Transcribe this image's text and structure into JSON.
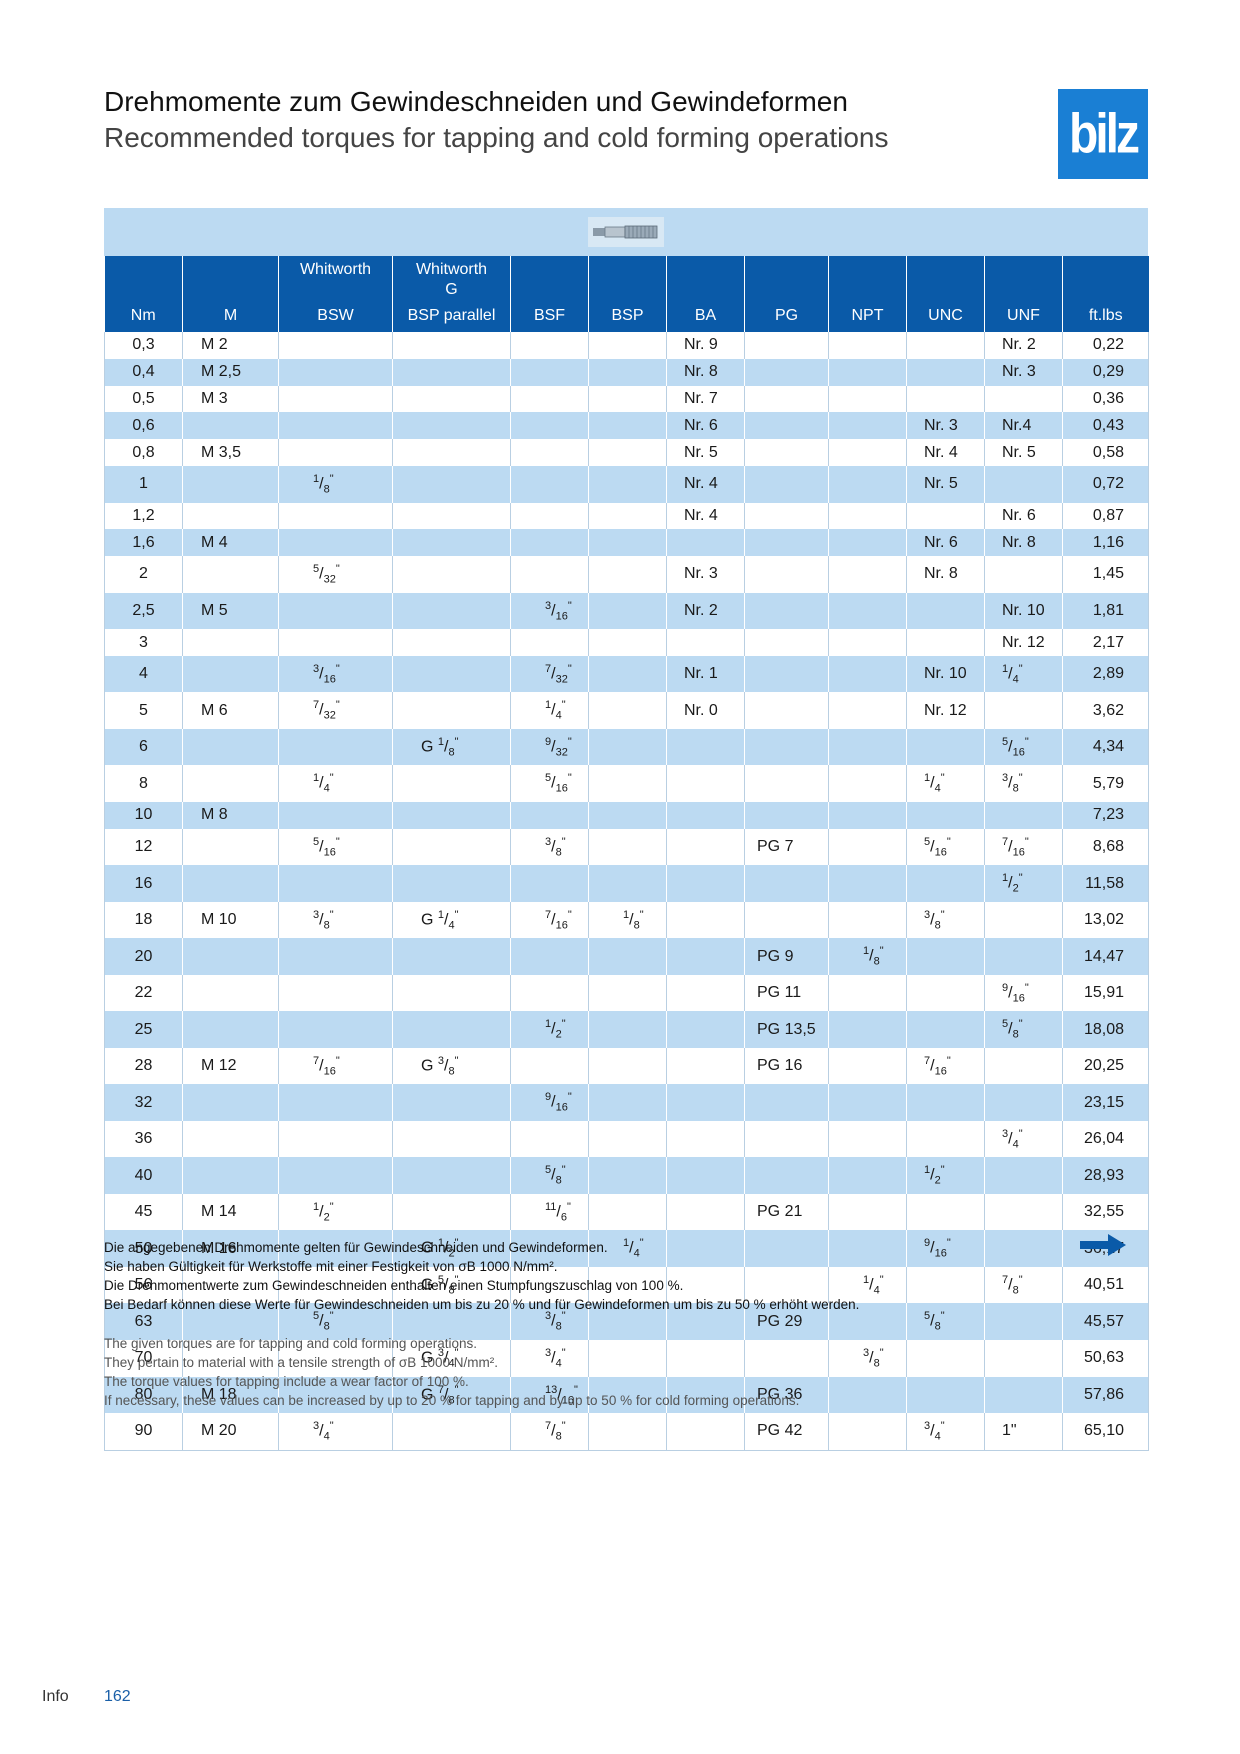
{
  "header": {
    "title_de": "Drehmomente zum Gewindeschneiden und Gewindeformen",
    "title_en": "Recommended torques for tapping and cold forming operations",
    "logo_text": "bilz",
    "logo_color": "#1a7fd4"
  },
  "table": {
    "columns": [
      {
        "top": "",
        "bottom": "Nm"
      },
      {
        "top": "",
        "bottom": "M"
      },
      {
        "top": "Whitworth",
        "bottom": "BSW"
      },
      {
        "top": "Whitworth\nG",
        "bottom": "BSP parallel"
      },
      {
        "top": "",
        "bottom": "BSF"
      },
      {
        "top": "",
        "bottom": "BSP"
      },
      {
        "top": "",
        "bottom": "BA"
      },
      {
        "top": "",
        "bottom": "PG"
      },
      {
        "top": "",
        "bottom": "NPT"
      },
      {
        "top": "",
        "bottom": "UNC"
      },
      {
        "top": "",
        "bottom": "UNF"
      },
      {
        "top": "",
        "bottom": "ft.lbs"
      }
    ],
    "rows": [
      [
        "0,3",
        "M 2",
        "",
        "",
        "",
        "",
        "Nr. 9",
        "",
        "",
        "",
        "Nr. 2",
        "0,22"
      ],
      [
        "0,4",
        "M 2,5",
        "",
        "",
        "",
        "",
        "Nr. 8",
        "",
        "",
        "",
        "Nr. 3",
        "0,29"
      ],
      [
        "0,5",
        "M 3",
        "",
        "",
        "",
        "",
        "Nr. 7",
        "",
        "",
        "",
        "",
        "0,36"
      ],
      [
        "0,6",
        "",
        "",
        "",
        "",
        "",
        "Nr. 6",
        "",
        "",
        "Nr. 3",
        "Nr.4",
        "0,43"
      ],
      [
        "0,8",
        "M 3,5",
        "",
        "",
        "",
        "",
        "Nr. 5",
        "",
        "",
        "Nr. 4",
        "Nr. 5",
        "0,58"
      ],
      [
        "1",
        "",
        "1/8\"",
        "",
        "",
        "",
        "Nr. 4",
        "",
        "",
        "Nr. 5",
        "",
        "0,72"
      ],
      [
        "1,2",
        "",
        "",
        "",
        "",
        "",
        "Nr. 4",
        "",
        "",
        "",
        "Nr. 6",
        "0,87"
      ],
      [
        "1,6",
        "M 4",
        "",
        "",
        "",
        "",
        "",
        "",
        "",
        "Nr. 6",
        "Nr. 8",
        "1,16"
      ],
      [
        "2",
        "",
        "5/32\"",
        "",
        "",
        "",
        "Nr. 3",
        "",
        "",
        "Nr. 8",
        "",
        "1,45"
      ],
      [
        "2,5",
        "M 5",
        "",
        "",
        "3/16\"",
        "",
        "Nr. 2",
        "",
        "",
        "",
        "Nr. 10",
        "1,81"
      ],
      [
        "3",
        "",
        "",
        "",
        "",
        "",
        "",
        "",
        "",
        "",
        "Nr. 12",
        "2,17"
      ],
      [
        "4",
        "",
        "3/16\"",
        "",
        "7/32\"",
        "",
        "Nr. 1",
        "",
        "",
        "Nr. 10",
        "1/4\"",
        "2,89"
      ],
      [
        "5",
        "M 6",
        "7/32\"",
        "",
        "1/4\"",
        "",
        "Nr. 0",
        "",
        "",
        "Nr. 12",
        "",
        "3,62"
      ],
      [
        "6",
        "",
        "",
        "G 1/8\"",
        "9/32\"",
        "",
        "",
        "",
        "",
        "",
        "5/16\"",
        "4,34"
      ],
      [
        "8",
        "",
        "1/4\"",
        "",
        "5/16\"",
        "",
        "",
        "",
        "",
        "1/4\"",
        "3/8\"",
        "5,79"
      ],
      [
        "10",
        "M 8",
        "",
        "",
        "",
        "",
        "",
        "",
        "",
        "",
        "",
        "7,23"
      ],
      [
        "12",
        "",
        "5/16\"",
        "",
        "3/8\"",
        "",
        "",
        "PG 7",
        "",
        "5/16\"",
        "7/16\"",
        "8,68"
      ],
      [
        "16",
        "",
        "",
        "",
        "",
        "",
        "",
        "",
        "",
        "",
        "1/2\"",
        "11,58"
      ],
      [
        "18",
        "M 10",
        "3/8\"",
        "G 1/4\"",
        "7/16\"",
        "1/8\"",
        "",
        "",
        "",
        "3/8\"",
        "",
        "13,02"
      ],
      [
        "20",
        "",
        "",
        "",
        "",
        "",
        "",
        "PG 9",
        "1/8\"",
        "",
        "",
        "14,47"
      ],
      [
        "22",
        "",
        "",
        "",
        "",
        "",
        "",
        "PG 11",
        "",
        "",
        "9/16\"",
        "15,91"
      ],
      [
        "25",
        "",
        "",
        "",
        "1/2\"",
        "",
        "",
        "PG 13,5",
        "",
        "",
        "5/8\"",
        "18,08"
      ],
      [
        "28",
        "M 12",
        "7/16\"",
        "G 3/8\"",
        "",
        "",
        "",
        "PG 16",
        "",
        "7/16\"",
        "",
        "20,25"
      ],
      [
        "32",
        "",
        "",
        "",
        "9/16\"",
        "",
        "",
        "",
        "",
        "",
        "",
        "23,15"
      ],
      [
        "36",
        "",
        "",
        "",
        "",
        "",
        "",
        "",
        "",
        "",
        "3/4\"",
        "26,04"
      ],
      [
        "40",
        "",
        "",
        "",
        "5/8\"",
        "",
        "",
        "",
        "",
        "1/2\"",
        "",
        "28,93"
      ],
      [
        "45",
        "M 14",
        "1/2\"",
        "",
        "11/6\"",
        "",
        "",
        "PG 21",
        "",
        "",
        "",
        "32,55"
      ],
      [
        "50",
        "M 16",
        "",
        "G 1/2\"",
        "",
        "1/4\"",
        "",
        "",
        "",
        "9/16\"",
        "",
        "36,17"
      ],
      [
        "56",
        "",
        "",
        "G 5/8\"",
        "",
        "",
        "",
        "",
        "1/4\"",
        "",
        "7/8\"",
        "40,51"
      ],
      [
        "63",
        "",
        "5/8\"",
        "",
        "3/8\"",
        "",
        "",
        "PG 29",
        "",
        "5/8\"",
        "",
        "45,57"
      ],
      [
        "70",
        "",
        "",
        "G 3/4\"",
        "3/4\"",
        "",
        "",
        "",
        "3/8\"",
        "",
        "",
        "50,63"
      ],
      [
        "80",
        "M 18",
        "",
        "G 7/8\"",
        "13/16\"",
        "",
        "",
        "PG 36",
        "",
        "",
        "",
        "57,86"
      ],
      [
        "90",
        "M 20",
        "3/4\"",
        "",
        "7/8\"",
        "",
        "",
        "PG 42",
        "",
        "3/4\"",
        "1\"",
        "65,10"
      ]
    ]
  },
  "notes_de": [
    "Die angegebenen Drehmomente gelten für Gewindeschneiden und Gewindeformen.",
    "Sie haben Gültigkeit für Werkstoffe mit einer Festigkeit von σB 1000 N/mm².",
    "Die Drehmomentwerte zum Gewindeschneiden enthalten einen Stumpfungszuschlag von 100 %.",
    "Bei Bedarf können diese Werte für Gewindeschneiden um bis zu 20 % und für Gewindeformen um bis zu 50 % erhöht werden."
  ],
  "notes_en": [
    "The given torques are for tapping and cold forming operations.",
    "They pertain to material with a tensile strength of σB 1000 N/mm².",
    "The torque values for tapping include a wear factor of 100 %.",
    "If necessary, these values can be increased by up to 20 % for tapping and by up to 50 % for cold forming operations."
  ],
  "footer": {
    "section": "Info",
    "page_number": "162"
  },
  "colors": {
    "header_blue": "#0a5aa8",
    "band_light_blue": "#bcdaf2",
    "arrow_blue": "#0a5aa8"
  },
  "icons": {
    "tap": "tap-tool-icon",
    "next": "arrow-right-icon"
  }
}
